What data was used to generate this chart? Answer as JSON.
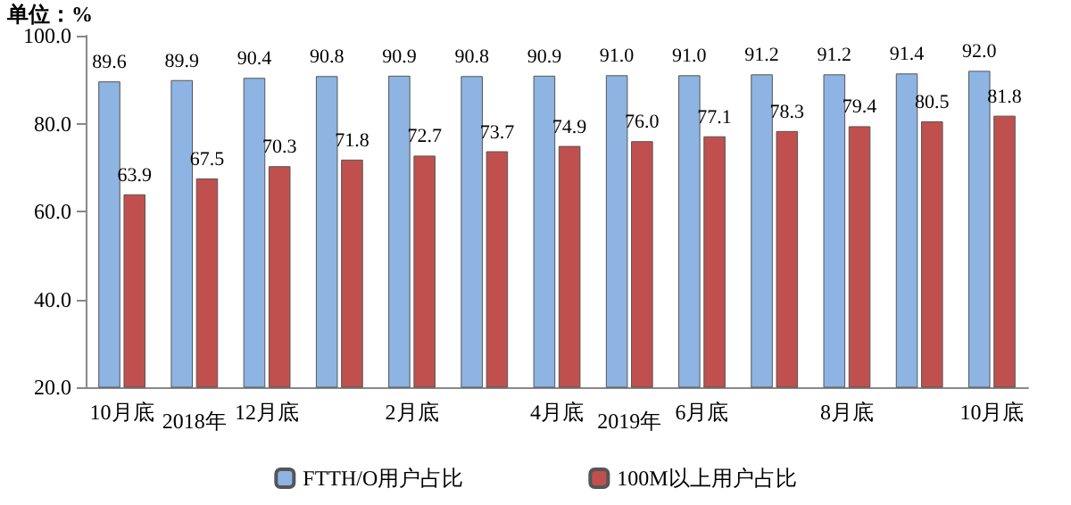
{
  "chart_data": {
    "type": "bar",
    "ylabel": "单位：%",
    "categories": [
      "10月底",
      null,
      "12月底",
      null,
      "2月底",
      null,
      "4月底",
      null,
      "6月底",
      null,
      "8月底",
      null,
      "10月底"
    ],
    "series": [
      {
        "name": "FTTH/O用户占比",
        "color": "#8db4e2",
        "values": [
          89.6,
          89.9,
          90.4,
          90.8,
          90.9,
          90.8,
          90.9,
          91.0,
          91.0,
          91.2,
          91.2,
          91.4,
          92.0
        ],
        "value_labels": [
          "89.6",
          "89.9",
          "90.4",
          "90.8",
          "90.9",
          "90.8",
          "90.9",
          "91.0",
          "91.0",
          "91.2",
          "91.2",
          "91.4",
          "92.0"
        ]
      },
      {
        "name": "100M以上用户占比",
        "color": "#c0504d",
        "values": [
          63.9,
          67.5,
          70.3,
          71.8,
          72.7,
          73.7,
          74.9,
          76.0,
          77.1,
          78.3,
          79.4,
          80.5,
          81.8
        ],
        "value_labels": [
          "63.9",
          "67.5",
          "70.3",
          "71.8",
          "72.7",
          "73.7",
          "74.9",
          "76.0",
          "77.1",
          "78.3",
          "79.4",
          "80.5",
          "81.8"
        ]
      }
    ],
    "ylim": [
      20,
      100
    ],
    "yticks": [
      {
        "value": 20,
        "label": "20.0"
      },
      {
        "value": 40,
        "label": "40.0"
      },
      {
        "value": 60,
        "label": "60.0"
      },
      {
        "value": 80,
        "label": "80.0"
      },
      {
        "value": 100,
        "label": "100.0"
      }
    ],
    "grid": false,
    "legend": "bottom",
    "annotations": [
      "2018年",
      "2019年"
    ]
  }
}
